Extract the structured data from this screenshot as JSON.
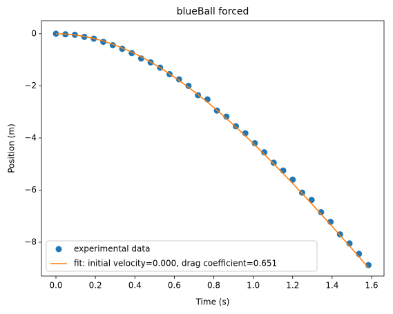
{
  "chart_data": {
    "type": "line",
    "title": "blueBall forced",
    "x_label": "Time (s)",
    "y_label": "Position (m)",
    "x": [
      0,
      0.048,
      0.096,
      0.144,
      0.192,
      0.24,
      0.288,
      0.336,
      0.384,
      0.432,
      0.48,
      0.528,
      0.576,
      0.624,
      0.672,
      0.72,
      0.768,
      0.816,
      0.864,
      0.912,
      0.96,
      1.008,
      1.056,
      1.104,
      1.152,
      1.2,
      1.248,
      1.296,
      1.344,
      1.392,
      1.44,
      1.488,
      1.536,
      1.584
    ],
    "series": [
      {
        "name": "experimental data",
        "color": "#1f77b4",
        "marker": "o",
        "values": [
          0,
          -0.02,
          -0.04,
          -0.12,
          -0.19,
          -0.31,
          -0.44,
          -0.58,
          -0.74,
          -0.95,
          -1.1,
          -1.3,
          -1.55,
          -1.75,
          -2.0,
          -2.36,
          -2.52,
          -2.95,
          -3.18,
          -3.55,
          -3.82,
          -4.2,
          -4.55,
          -4.95,
          -5.25,
          -5.6,
          -6.1,
          -6.38,
          -6.85,
          -7.22,
          -7.7,
          -8.05,
          -8.45,
          -8.88
        ]
      },
      {
        "name": "fit: initial velocity=0.000, drag coefficient=0.651",
        "color": "#ff7f0e",
        "marker": "line",
        "values": [
          0,
          -0.011,
          -0.045,
          -0.101,
          -0.18,
          -0.281,
          -0.404,
          -0.549,
          -0.703,
          -0.883,
          -1.085,
          -1.303,
          -1.538,
          -1.789,
          -2.056,
          -2.338,
          -2.626,
          -2.933,
          -3.25,
          -3.58,
          -3.919,
          -4.268,
          -4.625,
          -4.993,
          -5.365,
          -5.745,
          -6.133,
          -6.525,
          -6.924,
          -7.326,
          -7.734,
          -8.145,
          -8.561,
          -8.979
        ]
      }
    ],
    "xlim": [
      -0.0735,
      1.663
    ],
    "xticks": [
      {
        "value": 0,
        "label": "0.0"
      },
      {
        "value": 0.2,
        "label": "0.2"
      },
      {
        "value": 0.4,
        "label": "0.4"
      },
      {
        "value": 0.6,
        "label": "0.6"
      },
      {
        "value": 0.8,
        "label": "0.8"
      },
      {
        "value": 1,
        "label": "1.0"
      },
      {
        "value": 1.2,
        "label": "1.2"
      },
      {
        "value": 1.4,
        "label": "1.4"
      },
      {
        "value": 1.6,
        "label": "1.6"
      }
    ],
    "ylim": [
      -9.3,
      0.5
    ],
    "yticks": [
      0,
      {
        "value": -2,
        "label": "−2"
      },
      {
        "value": -4,
        "label": "−4"
      },
      {
        "value": -6,
        "label": "−6"
      },
      {
        "value": -8,
        "label": "−8"
      }
    ],
    "legend": "lower left",
    "grid": false
  }
}
